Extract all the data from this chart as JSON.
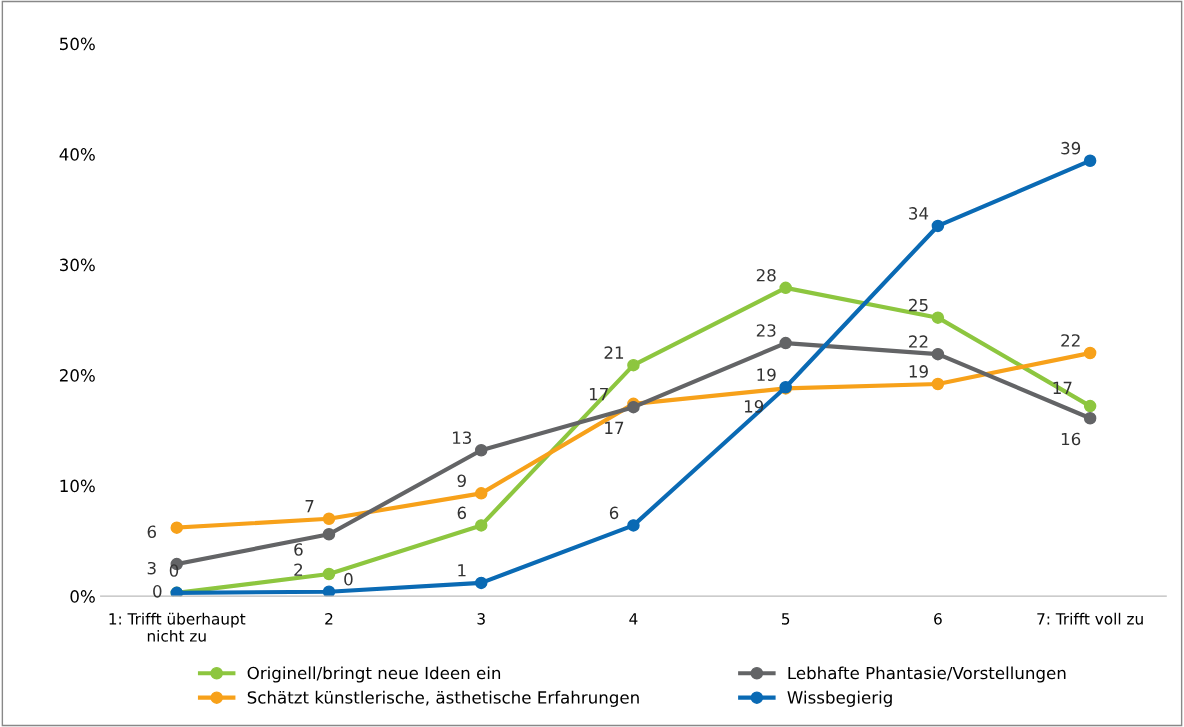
{
  "chart_data": {
    "type": "line",
    "categories": [
      "1: Trifft überhaupt\nnicht zu",
      "2",
      "3",
      "4",
      "5",
      "6",
      "7: Trifft voll zu"
    ],
    "ylim": [
      0,
      50
    ],
    "yticks": [
      {
        "value": 0,
        "label": "0%"
      },
      {
        "value": 10,
        "label": "10%"
      },
      {
        "value": 20,
        "label": "20%"
      },
      {
        "value": 30,
        "label": "30%"
      },
      {
        "value": 40,
        "label": "40%"
      },
      {
        "value": 50,
        "label": "50%"
      }
    ],
    "grid": false,
    "legend": "bottom",
    "marker": "circle",
    "line_style": "solid",
    "series": [
      {
        "name": "Originell/bringt neue Ideen ein",
        "color": "#8dc63f",
        "values": [
          0.3,
          2.0,
          6.4,
          20.9,
          27.9,
          25.2,
          17.2
        ],
        "value_labels": [
          "0",
          "2",
          "6",
          "21",
          "28",
          "25",
          "17"
        ]
      },
      {
        "name": "Schätzt künstlerische, ästhetische Erfahrungen",
        "color": "#f7a11a",
        "values": [
          6.2,
          7.0,
          9.3,
          17.4,
          18.8,
          19.2,
          22.0
        ],
        "value_labels": [
          "6",
          "7",
          "9",
          "17",
          "19",
          "19",
          "22"
        ]
      },
      {
        "name": "Lebhafte Phantasie/Vorstellungen",
        "color": "#636466",
        "values": [
          2.9,
          5.6,
          13.2,
          17.1,
          22.9,
          21.9,
          16.1
        ],
        "value_labels": [
          "3",
          "6",
          "13",
          "17",
          "23",
          "22",
          "16"
        ]
      },
      {
        "name": "Wissbegierig",
        "color": "#0a6ab4",
        "values": [
          0.3,
          0.4,
          1.2,
          6.4,
          18.9,
          33.5,
          39.4
        ],
        "value_labels": [
          "0",
          "0",
          "1",
          "6",
          "19",
          "34",
          "39"
        ]
      }
    ]
  }
}
